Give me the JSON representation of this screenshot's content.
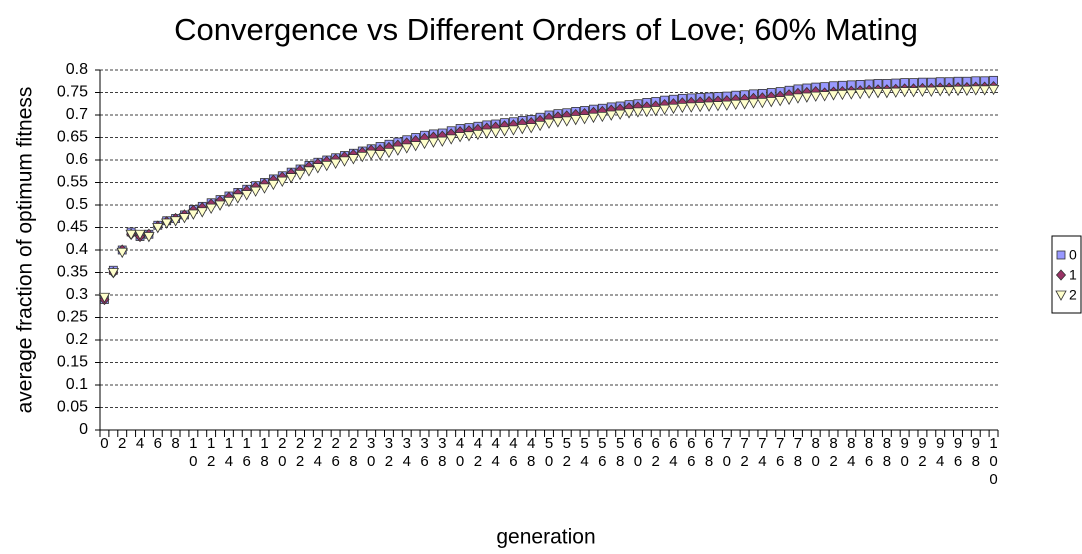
{
  "chart_data": {
    "type": "scatter",
    "title": "Convergence vs Different Orders of Love; 60% Mating",
    "x_label": "generation",
    "y_label": "average fraction of optimum fitness",
    "categories": [
      0,
      null,
      2,
      null,
      4,
      null,
      6,
      null,
      8,
      null,
      10,
      null,
      12,
      null,
      14,
      null,
      16,
      null,
      18,
      null,
      20,
      null,
      22,
      null,
      24,
      null,
      26,
      null,
      28,
      null,
      30,
      null,
      32,
      null,
      34,
      null,
      36,
      null,
      38,
      null,
      40,
      null,
      42,
      null,
      44,
      null,
      46,
      null,
      48,
      null,
      50,
      null,
      52,
      null,
      54,
      null,
      56,
      null,
      58,
      null,
      60,
      null,
      62,
      null,
      64,
      null,
      66,
      null,
      68,
      null,
      70,
      null,
      72,
      null,
      74,
      null,
      76,
      null,
      78,
      null,
      80,
      null,
      82,
      null,
      84,
      null,
      86,
      null,
      88,
      null,
      90,
      null,
      92,
      null,
      94,
      null,
      96,
      null,
      98,
      null,
      100
    ],
    "ylim": [
      0,
      0.8
    ],
    "yticks": [
      0,
      0.05,
      0.1,
      0.15,
      0.2,
      0.25,
      0.3,
      0.35,
      0.4,
      0.45,
      0.5,
      0.55,
      0.6,
      0.65,
      0.7,
      0.75,
      0.8
    ],
    "grid": true,
    "legend": "right",
    "series": [
      {
        "name": "0",
        "color": "#9999ff",
        "marker": "square",
        "values": [
          0.29,
          0.355,
          0.4,
          0.44,
          0.43,
          0.435,
          0.455,
          0.465,
          0.47,
          0.478,
          0.49,
          0.497,
          0.505,
          0.512,
          0.52,
          0.528,
          0.535,
          0.543,
          0.55,
          0.558,
          0.565,
          0.573,
          0.58,
          0.588,
          0.595,
          0.6,
          0.605,
          0.61,
          0.615,
          0.62,
          0.625,
          0.63,
          0.635,
          0.64,
          0.645,
          0.65,
          0.655,
          0.658,
          0.66,
          0.665,
          0.67,
          0.672,
          0.675,
          0.678,
          0.68,
          0.683,
          0.685,
          0.688,
          0.69,
          0.695,
          0.7,
          0.703,
          0.705,
          0.708,
          0.71,
          0.713,
          0.715,
          0.718,
          0.72,
          0.723,
          0.725,
          0.728,
          0.73,
          0.733,
          0.735,
          0.737,
          0.738,
          0.739,
          0.74,
          0.741,
          0.742,
          0.744,
          0.745,
          0.747,
          0.748,
          0.75,
          0.752,
          0.755,
          0.758,
          0.76,
          0.762,
          0.763,
          0.765,
          0.766,
          0.767,
          0.768,
          0.769,
          0.77,
          0.77,
          0.771,
          0.772,
          0.772,
          0.773,
          0.773,
          0.774,
          0.774,
          0.775,
          0.775,
          0.776,
          0.776,
          0.777
        ]
      },
      {
        "name": "1",
        "color": "#993366",
        "marker": "diamond",
        "values": [
          0.29,
          0.35,
          0.4,
          0.435,
          0.43,
          0.435,
          0.453,
          0.463,
          0.47,
          0.478,
          0.488,
          0.494,
          0.502,
          0.509,
          0.517,
          0.525,
          0.532,
          0.54,
          0.547,
          0.555,
          0.562,
          0.57,
          0.577,
          0.585,
          0.592,
          0.597,
          0.602,
          0.607,
          0.612,
          0.617,
          0.622,
          0.623,
          0.628,
          0.633,
          0.638,
          0.643,
          0.648,
          0.651,
          0.653,
          0.658,
          0.663,
          0.665,
          0.668,
          0.671,
          0.673,
          0.676,
          0.678,
          0.681,
          0.683,
          0.688,
          0.693,
          0.696,
          0.698,
          0.701,
          0.703,
          0.706,
          0.708,
          0.711,
          0.713,
          0.716,
          0.718,
          0.718,
          0.72,
          0.723,
          0.725,
          0.727,
          0.728,
          0.729,
          0.73,
          0.731,
          0.732,
          0.734,
          0.735,
          0.737,
          0.738,
          0.74,
          0.742,
          0.745,
          0.748,
          0.75,
          0.752,
          0.749,
          0.751,
          0.752,
          0.753,
          0.754,
          0.755,
          0.756,
          0.756,
          0.757,
          0.758,
          0.758,
          0.759,
          0.759,
          0.76,
          0.76,
          0.761,
          0.761,
          0.762,
          0.762,
          0.763
        ]
      },
      {
        "name": "2",
        "color": "#ffffcc",
        "marker": "triangle-down",
        "values": [
          0.295,
          0.35,
          0.395,
          0.435,
          0.435,
          0.43,
          0.45,
          0.46,
          0.465,
          0.472,
          0.48,
          0.485,
          0.493,
          0.5,
          0.508,
          0.516,
          0.523,
          0.531,
          0.538,
          0.546,
          0.553,
          0.561,
          0.568,
          0.576,
          0.583,
          0.588,
          0.593,
          0.598,
          0.603,
          0.608,
          0.613,
          0.612,
          0.617,
          0.622,
          0.627,
          0.632,
          0.637,
          0.64,
          0.642,
          0.647,
          0.652,
          0.654,
          0.657,
          0.66,
          0.662,
          0.665,
          0.667,
          0.67,
          0.672,
          0.677,
          0.682,
          0.685,
          0.687,
          0.69,
          0.692,
          0.695,
          0.697,
          0.7,
          0.702,
          0.705,
          0.707,
          0.708,
          0.71,
          0.713,
          0.715,
          0.717,
          0.718,
          0.719,
          0.72,
          0.721,
          0.722,
          0.724,
          0.725,
          0.727,
          0.728,
          0.73,
          0.732,
          0.735,
          0.738,
          0.74,
          0.742,
          0.743,
          0.745,
          0.746,
          0.747,
          0.748,
          0.749,
          0.75,
          0.75,
          0.751,
          0.752,
          0.752,
          0.753,
          0.753,
          0.754,
          0.754,
          0.755,
          0.755,
          0.756,
          0.756,
          0.757
        ]
      }
    ]
  }
}
